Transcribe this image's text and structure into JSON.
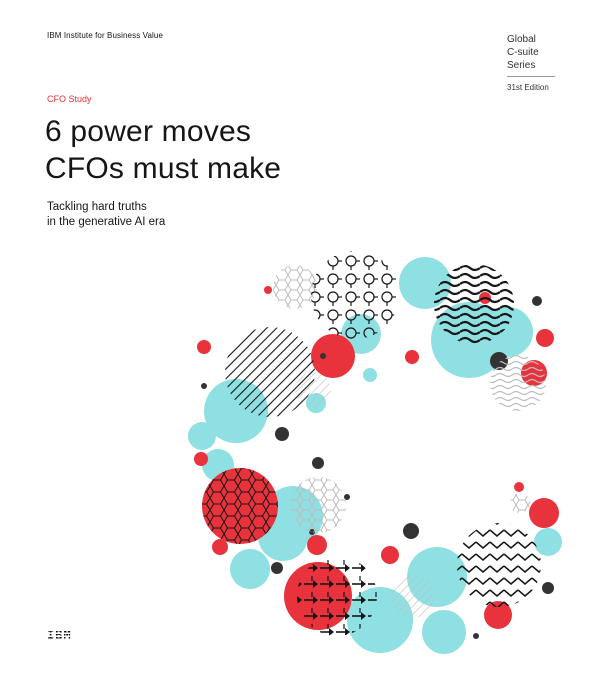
{
  "header": {
    "institute": "IBM Institute for Business Value",
    "series_lines": [
      "Global",
      "C-suite",
      "Series"
    ],
    "edition": "31st Edition"
  },
  "cover": {
    "tag": "CFO Study",
    "title_lines": [
      "6 power moves",
      "CFOs must make"
    ],
    "subtitle_lines": [
      "Tackling hard truths",
      "in the generative AI era"
    ]
  },
  "logo_text": "IBM",
  "colors": {
    "accent_red": "#e8333c",
    "cyan": "#8fe0e3",
    "ink": "#161616"
  },
  "artwork": {
    "description_icon": "c-ring-pattern-icon"
  }
}
